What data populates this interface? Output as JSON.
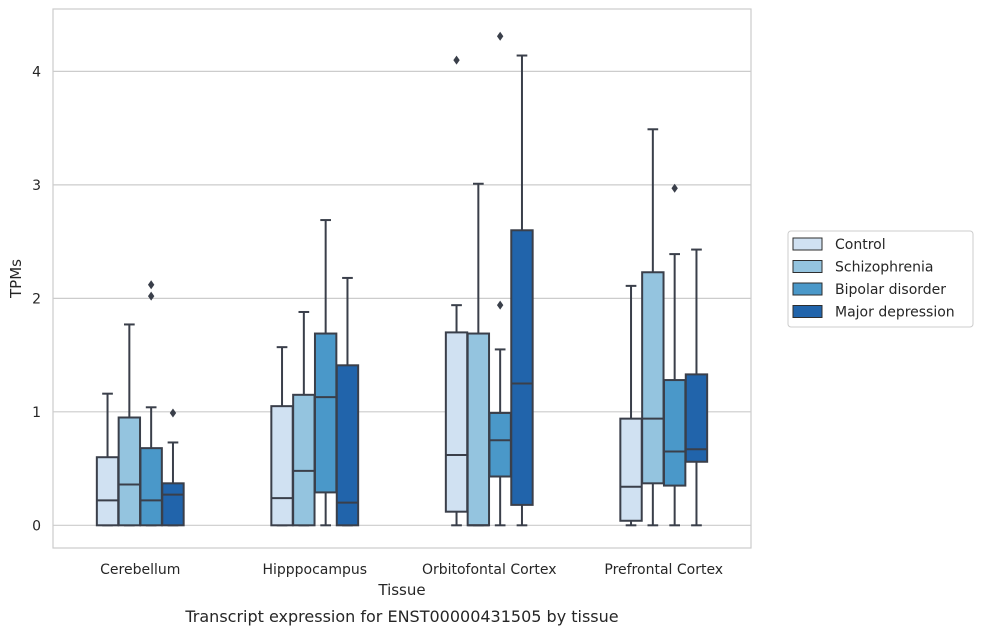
{
  "caption": "Transcript expression for ENST00000431505 by tissue",
  "chart_data": {
    "type": "box",
    "xlabel": "Tissue",
    "ylabel": "TPMs",
    "ylim": [
      -0.2,
      4.55
    ],
    "yticks": [
      0,
      1,
      2,
      3,
      4
    ],
    "grid": "horizontal",
    "legend_position": "right",
    "categories": [
      "Cerebellum",
      "Hipppocampus",
      "Orbitofontal Cortex",
      "Prefrontal Cortex"
    ],
    "series": [
      {
        "name": "Control",
        "color": "#d0e1f2",
        "boxes": [
          {
            "whislo": 0,
            "q1": 0,
            "med": 0.22,
            "q3": 0.6,
            "whishi": 1.16,
            "fliers": []
          },
          {
            "whislo": 0,
            "q1": 0,
            "med": 0.24,
            "q3": 1.05,
            "whishi": 1.57,
            "fliers": []
          },
          {
            "whislo": 0,
            "q1": 0.12,
            "med": 0.62,
            "q3": 1.7,
            "whishi": 1.94,
            "fliers": [
              4.1
            ]
          },
          {
            "whislo": 0,
            "q1": 0.04,
            "med": 0.34,
            "q3": 0.94,
            "whishi": 2.11,
            "fliers": []
          }
        ]
      },
      {
        "name": "Schizophrenia",
        "color": "#94c4df",
        "boxes": [
          {
            "whislo": 0,
            "q1": 0,
            "med": 0.36,
            "q3": 0.95,
            "whishi": 1.77,
            "fliers": []
          },
          {
            "whislo": 0,
            "q1": 0,
            "med": 0.48,
            "q3": 1.15,
            "whishi": 1.88,
            "fliers": []
          },
          {
            "whislo": 0,
            "q1": 0,
            "med": 0.0,
            "q3": 1.69,
            "whishi": 3.01,
            "fliers": []
          },
          {
            "whislo": 0,
            "q1": 0.37,
            "med": 0.94,
            "q3": 2.23,
            "whishi": 3.49,
            "fliers": []
          }
        ]
      },
      {
        "name": "Bipolar disorder",
        "color": "#4a98c9",
        "boxes": [
          {
            "whislo": 0,
            "q1": 0,
            "med": 0.22,
            "q3": 0.68,
            "whishi": 1.04,
            "fliers": [
              2.02,
              2.12
            ]
          },
          {
            "whislo": 0,
            "q1": 0.29,
            "med": 1.13,
            "q3": 1.69,
            "whishi": 2.69,
            "fliers": []
          },
          {
            "whislo": 0,
            "q1": 0.43,
            "med": 0.75,
            "q3": 0.99,
            "whishi": 1.55,
            "fliers": [
              1.94,
              4.31
            ]
          },
          {
            "whislo": 0,
            "q1": 0.35,
            "med": 0.65,
            "q3": 1.28,
            "whishi": 2.39,
            "fliers": [
              2.97
            ]
          }
        ]
      },
      {
        "name": "Major depression",
        "color": "#2164ab",
        "boxes": [
          {
            "whislo": 0,
            "q1": 0,
            "med": 0.27,
            "q3": 0.37,
            "whishi": 0.73,
            "fliers": [
              0.99
            ]
          },
          {
            "whislo": 0,
            "q1": 0,
            "med": 0.2,
            "q3": 1.41,
            "whishi": 2.18,
            "fliers": []
          },
          {
            "whislo": 0,
            "q1": 0.18,
            "med": 1.25,
            "q3": 2.6,
            "whishi": 4.14,
            "fliers": []
          },
          {
            "whislo": 0,
            "q1": 0.56,
            "med": 0.67,
            "q3": 1.33,
            "whishi": 2.43,
            "fliers": []
          }
        ]
      }
    ]
  }
}
